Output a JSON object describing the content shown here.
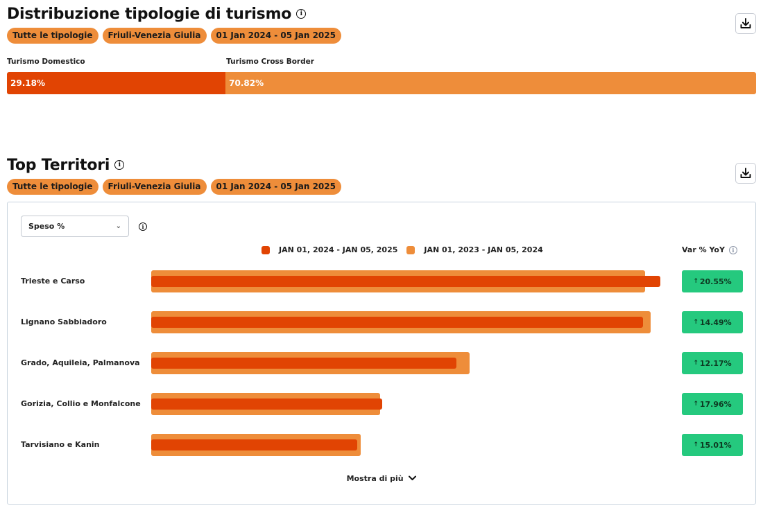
{
  "distribution": {
    "title": "Distribuzione tipologie di turismo",
    "filters": [
      "Tutte le tipologie",
      "Friuli-Venezia Giulia",
      "01 Jan 2024 - 05 Jan 2025"
    ],
    "segments": [
      {
        "label": "Turismo Domestico",
        "value_text": "29.18%",
        "value": 29.18,
        "color": "#e14403"
      },
      {
        "label": "Turismo Cross Border",
        "value_text": "70.82%",
        "value": 70.82,
        "color": "#ee8d3a"
      }
    ]
  },
  "top_territories": {
    "title": "Top Territori",
    "filters": [
      "Tutte le tipologie",
      "Friuli-Venezia Giulia",
      "01 Jan 2024 - 05 Jan 2025"
    ],
    "metric_select": {
      "value": "Speso %"
    },
    "legend": [
      {
        "label": "JAN 01, 2024 - JAN 05, 2025",
        "color": "#e14403"
      },
      {
        "label": "JAN 01, 2023 - JAN 05, 2024",
        "color": "#ee8d3a"
      }
    ],
    "var_header": "Var % YoY",
    "rows": [
      {
        "label": "Trieste e Carso",
        "current": 100,
        "previous": 97,
        "var": "20.55%"
      },
      {
        "label": "Lignano Sabbiadoro",
        "current": 96.6,
        "previous": 98.1,
        "var": "14.49%"
      },
      {
        "label": "Grado, Aquileia, Palmanova",
        "current": 60,
        "previous": 62.6,
        "var": "12.17%"
      },
      {
        "label": "Gorizia, Collio e Monfalcone",
        "current": 45.4,
        "previous": 45,
        "var": "17.96%"
      },
      {
        "label": "Tarvisiano e Kanin",
        "current": 40.5,
        "previous": 41.1,
        "var": "15.01%"
      }
    ],
    "show_more": "Mostra di più"
  },
  "icons": {
    "download": "download-icon",
    "info": "info-icon",
    "chevron": "chevron-down-icon"
  }
}
